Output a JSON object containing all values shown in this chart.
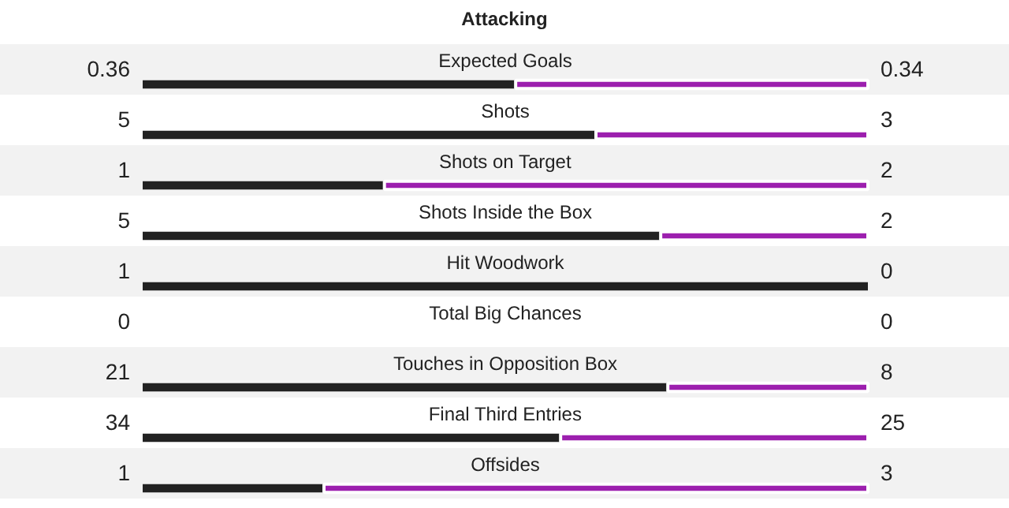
{
  "chart_data": [
    {
      "type": "bar",
      "title": "Attacking",
      "orientation": "horizontal",
      "stacked": true,
      "data_labels": true,
      "tick_labels": false,
      "xlim": [
        0,
        0.7
      ],
      "categories": [
        "Expected Goals"
      ],
      "series": [
        {
          "color": "#222222",
          "values": [
            0.36
          ]
        },
        {
          "color": "#9c1fae",
          "values": [
            0.34
          ]
        }
      ]
    },
    {
      "type": "bar",
      "orientation": "horizontal",
      "stacked": true,
      "data_labels": true,
      "tick_labels": false,
      "xlim": [
        0,
        8
      ],
      "categories": [
        "Shots"
      ],
      "series": [
        {
          "color": "#222222",
          "values": [
            5
          ]
        },
        {
          "color": "#9c1fae",
          "values": [
            3
          ]
        }
      ]
    },
    {
      "type": "bar",
      "orientation": "horizontal",
      "stacked": true,
      "data_labels": true,
      "tick_labels": false,
      "xlim": [
        0,
        3
      ],
      "categories": [
        "Shots on Target"
      ],
      "series": [
        {
          "color": "#222222",
          "values": [
            1
          ]
        },
        {
          "color": "#9c1fae",
          "values": [
            2
          ]
        }
      ]
    },
    {
      "type": "bar",
      "orientation": "horizontal",
      "stacked": true,
      "data_labels": true,
      "tick_labels": false,
      "xlim": [
        0,
        7
      ],
      "categories": [
        "Shots Inside the Box"
      ],
      "series": [
        {
          "color": "#222222",
          "values": [
            5
          ]
        },
        {
          "color": "#9c1fae",
          "values": [
            2
          ]
        }
      ]
    },
    {
      "type": "bar",
      "orientation": "horizontal",
      "data_labels": true,
      "tick_labels": false,
      "categories": [
        "Hit Woodwork"
      ],
      "series": [
        {
          "color": "#222222",
          "values": [
            1
          ]
        }
      ],
      "annotations": [
        "0"
      ]
    },
    {
      "type": "other",
      "title": "Total Big Chances",
      "annotations": [
        "0",
        "0"
      ]
    },
    {
      "type": "bar",
      "orientation": "horizontal",
      "stacked": true,
      "data_labels": true,
      "tick_labels": false,
      "xlim": [
        0,
        29
      ],
      "categories": [
        "Touches in Opposition Box"
      ],
      "series": [
        {
          "color": "#222222",
          "values": [
            21
          ]
        },
        {
          "color": "#9c1fae",
          "values": [
            8
          ]
        }
      ]
    },
    {
      "type": "bar",
      "orientation": "horizontal",
      "stacked": true,
      "data_labels": true,
      "tick_labels": false,
      "xlim": [
        0,
        59
      ],
      "categories": [
        "Final Third Entries"
      ],
      "series": [
        {
          "color": "#222222",
          "values": [
            34
          ]
        },
        {
          "color": "#9c1fae",
          "values": [
            25
          ]
        }
      ]
    },
    {
      "type": "bar",
      "orientation": "horizontal",
      "stacked": true,
      "data_labels": true,
      "tick_labels": false,
      "xlim": [
        0,
        4
      ],
      "categories": [
        "Offsides"
      ],
      "series": [
        {
          "color": "#222222",
          "values": [
            1
          ]
        },
        {
          "color": "#9c1fae",
          "values": [
            3
          ]
        }
      ]
    }
  ]
}
